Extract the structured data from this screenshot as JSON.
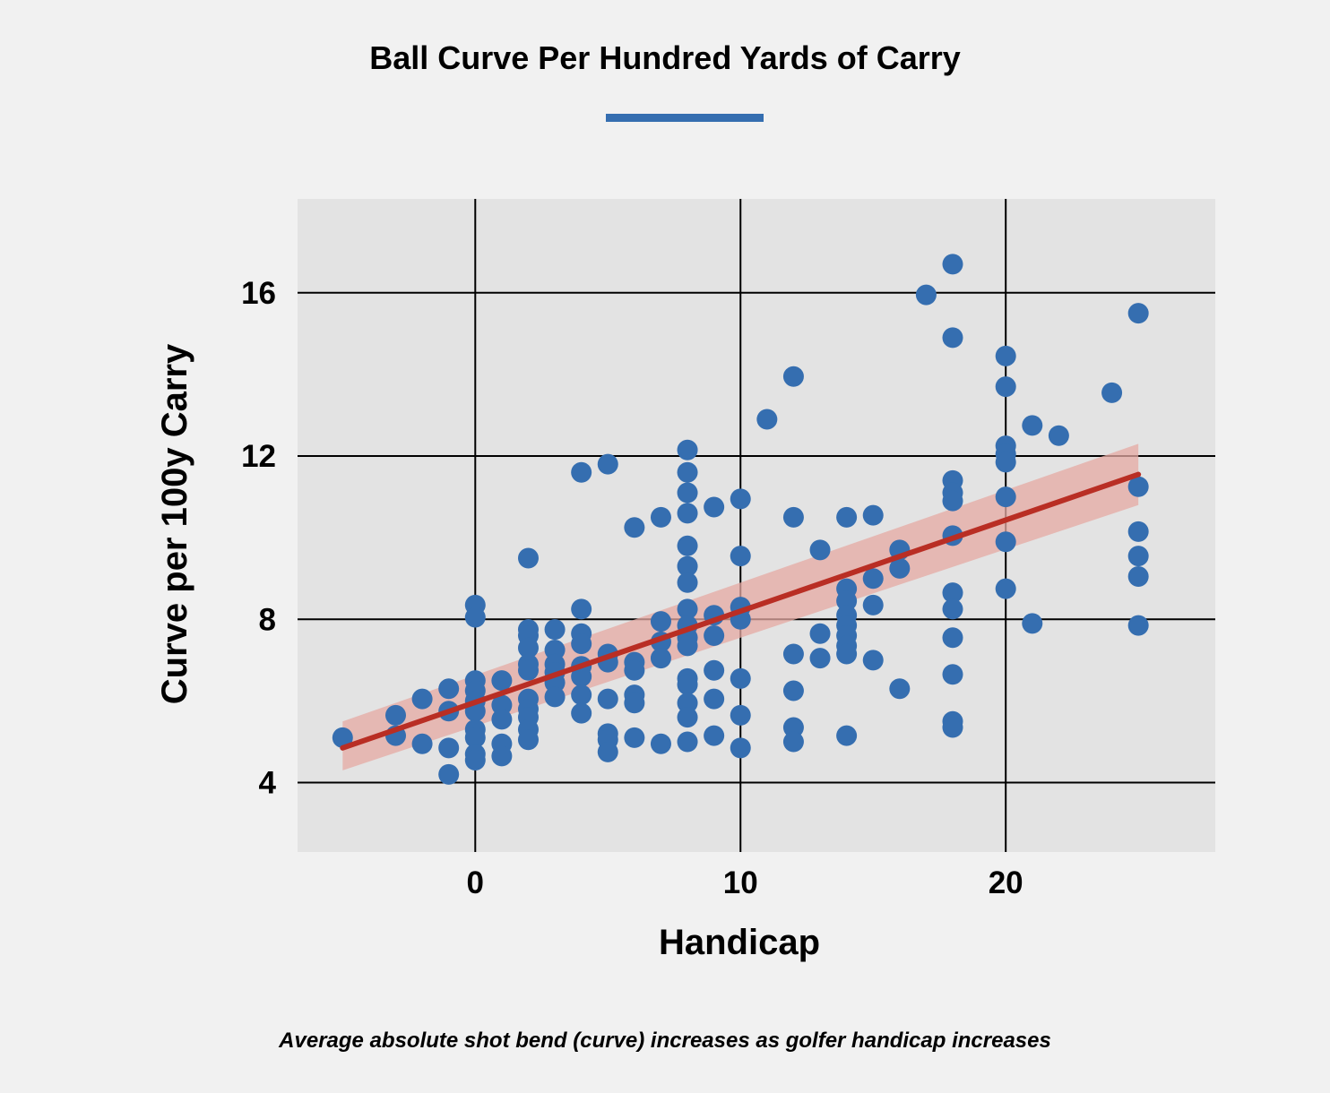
{
  "chart_data": {
    "type": "scatter",
    "title": "Ball Curve Per Hundred Yards of Carry",
    "caption": "Average absolute shot bend (curve) increases as golfer handicap increases",
    "xlabel": "Handicap",
    "ylabel": "Curve per 100y Carry",
    "xlim": [
      -6.7,
      27.9
    ],
    "ylim": [
      2.3,
      18.3
    ],
    "xticks": [
      0,
      10,
      20
    ],
    "yticks": [
      4,
      8,
      12,
      16
    ],
    "grid": true,
    "colors": {
      "points": "#356eb0",
      "trend": "#b92e24",
      "band": "#e6a9a3",
      "panel": "#e3e3e3",
      "background": "#f1f1f1"
    },
    "trend": {
      "x": [
        -5,
        25
      ],
      "y": [
        4.85,
        11.55
      ],
      "ci_lower": [
        4.3,
        10.8
      ],
      "ci_upper": [
        5.5,
        12.3
      ]
    },
    "points": [
      [
        -5,
        5.1
      ],
      [
        -3,
        5.65
      ],
      [
        -3,
        5.15
      ],
      [
        -2,
        6.05
      ],
      [
        -2,
        4.95
      ],
      [
        -1,
        6.3
      ],
      [
        -1,
        5.75
      ],
      [
        -1,
        4.85
      ],
      [
        -1,
        4.2
      ],
      [
        0,
        8.35
      ],
      [
        0,
        8.05
      ],
      [
        0,
        6.5
      ],
      [
        0,
        6.25
      ],
      [
        0,
        6.0
      ],
      [
        0,
        5.75
      ],
      [
        0,
        5.3
      ],
      [
        0,
        5.1
      ],
      [
        0,
        4.7
      ],
      [
        0,
        4.55
      ],
      [
        1,
        6.5
      ],
      [
        1,
        5.9
      ],
      [
        1,
        5.55
      ],
      [
        1,
        4.95
      ],
      [
        1,
        4.65
      ],
      [
        2,
        9.5
      ],
      [
        2,
        7.75
      ],
      [
        2,
        7.6
      ],
      [
        2,
        7.3
      ],
      [
        2,
        6.9
      ],
      [
        2,
        6.75
      ],
      [
        2,
        6.05
      ],
      [
        2,
        5.8
      ],
      [
        2,
        5.6
      ],
      [
        2,
        5.3
      ],
      [
        2,
        5.05
      ],
      [
        3,
        7.75
      ],
      [
        3,
        7.25
      ],
      [
        3,
        6.9
      ],
      [
        3,
        6.7
      ],
      [
        3,
        6.45
      ],
      [
        3,
        6.1
      ],
      [
        4,
        11.6
      ],
      [
        4,
        8.25
      ],
      [
        4,
        7.65
      ],
      [
        4,
        7.4
      ],
      [
        4,
        6.85
      ],
      [
        4,
        6.6
      ],
      [
        4,
        6.15
      ],
      [
        4,
        5.7
      ],
      [
        5,
        11.8
      ],
      [
        5,
        7.15
      ],
      [
        5,
        6.95
      ],
      [
        5,
        6.05
      ],
      [
        5,
        5.2
      ],
      [
        5,
        5.05
      ],
      [
        5,
        4.75
      ],
      [
        6,
        10.25
      ],
      [
        6,
        6.95
      ],
      [
        6,
        6.75
      ],
      [
        6,
        6.15
      ],
      [
        6,
        5.95
      ],
      [
        6,
        5.1
      ],
      [
        7,
        10.5
      ],
      [
        7,
        7.95
      ],
      [
        7,
        7.45
      ],
      [
        7,
        7.05
      ],
      [
        7,
        4.95
      ],
      [
        8,
        12.15
      ],
      [
        8,
        11.6
      ],
      [
        8,
        11.1
      ],
      [
        8,
        10.6
      ],
      [
        8,
        9.8
      ],
      [
        8,
        9.3
      ],
      [
        8,
        8.9
      ],
      [
        8,
        8.25
      ],
      [
        8,
        7.85
      ],
      [
        8,
        7.55
      ],
      [
        8,
        7.35
      ],
      [
        8,
        6.55
      ],
      [
        8,
        6.4
      ],
      [
        8,
        5.95
      ],
      [
        8,
        5.6
      ],
      [
        8,
        5.0
      ],
      [
        9,
        10.75
      ],
      [
        9,
        8.1
      ],
      [
        9,
        7.6
      ],
      [
        9,
        6.75
      ],
      [
        9,
        6.05
      ],
      [
        9,
        5.15
      ],
      [
        10,
        10.95
      ],
      [
        10,
        9.55
      ],
      [
        10,
        8.3
      ],
      [
        10,
        8.0
      ],
      [
        10,
        6.55
      ],
      [
        10,
        5.65
      ],
      [
        10,
        4.85
      ],
      [
        11,
        12.9
      ],
      [
        12,
        13.95
      ],
      [
        12,
        10.5
      ],
      [
        12,
        7.15
      ],
      [
        12,
        6.25
      ],
      [
        12,
        5.35
      ],
      [
        12,
        5.0
      ],
      [
        13,
        9.7
      ],
      [
        13,
        7.65
      ],
      [
        13,
        7.05
      ],
      [
        14,
        10.5
      ],
      [
        14,
        8.75
      ],
      [
        14,
        8.45
      ],
      [
        14,
        8.1
      ],
      [
        14,
        7.85
      ],
      [
        14,
        7.6
      ],
      [
        14,
        7.35
      ],
      [
        14,
        7.15
      ],
      [
        14,
        5.15
      ],
      [
        15,
        10.55
      ],
      [
        15,
        9.0
      ],
      [
        15,
        8.35
      ],
      [
        15,
        7.0
      ],
      [
        16,
        9.7
      ],
      [
        16,
        9.25
      ],
      [
        16,
        6.3
      ],
      [
        17,
        15.95
      ],
      [
        18,
        16.7
      ],
      [
        18,
        14.9
      ],
      [
        18,
        11.4
      ],
      [
        18,
        11.1
      ],
      [
        18,
        10.9
      ],
      [
        18,
        10.05
      ],
      [
        18,
        8.65
      ],
      [
        18,
        8.25
      ],
      [
        18,
        7.55
      ],
      [
        18,
        6.65
      ],
      [
        18,
        5.5
      ],
      [
        18,
        5.35
      ],
      [
        20,
        14.45
      ],
      [
        20,
        13.7
      ],
      [
        20,
        12.25
      ],
      [
        20,
        12.05
      ],
      [
        20,
        11.85
      ],
      [
        20,
        11.0
      ],
      [
        20,
        9.9
      ],
      [
        20,
        8.75
      ],
      [
        21,
        12.75
      ],
      [
        21,
        7.9
      ],
      [
        22,
        12.5
      ],
      [
        24,
        13.55
      ],
      [
        25,
        15.5
      ],
      [
        25,
        11.25
      ],
      [
        25,
        10.15
      ],
      [
        25,
        9.55
      ],
      [
        25,
        9.05
      ],
      [
        25,
        7.85
      ]
    ]
  }
}
